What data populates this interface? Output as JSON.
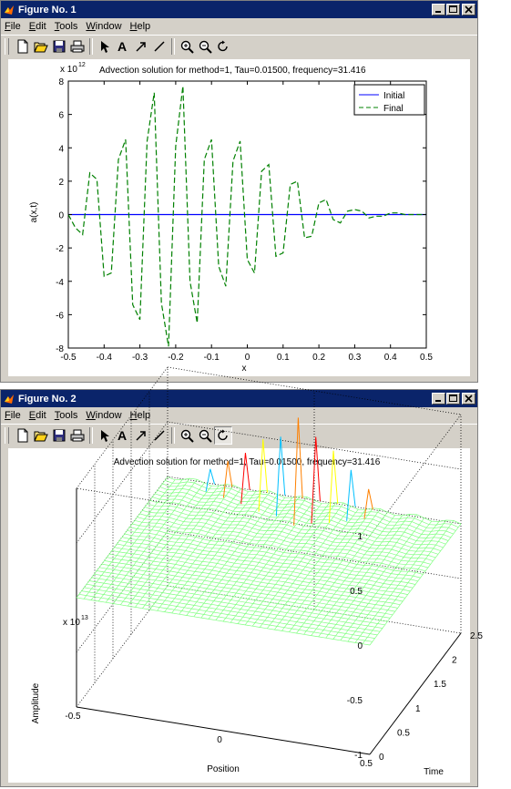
{
  "fig1": {
    "title": "Figure No. 1",
    "menu": [
      "File",
      "Edit",
      "Tools",
      "Window",
      "Help"
    ],
    "exponent_base": "x 10",
    "exponent_power": "12",
    "plot_title": "Advection solution for method=1, Tau=0.01500, frequency=31.416",
    "xlabel": "x",
    "ylabel": "a(x,t)",
    "legend": [
      {
        "label": "Initial",
        "color": "#0000ff",
        "dash": "solid"
      },
      {
        "label": "Final",
        "color": "#008000",
        "dash": "dashed"
      }
    ]
  },
  "fig2": {
    "title": "Figure No. 2",
    "menu": [
      "File",
      "Edit",
      "Tools",
      "Window",
      "Help"
    ],
    "plot_title": "Advection solution for method=1, Tau=0.01500, frequency=31.416",
    "exponent_base": "x 10",
    "exponent_power": "13",
    "zlabel": "Amplitude",
    "xlabel": "Position",
    "ylabel": "Time",
    "z_ticks": [
      "1",
      "0.5",
      "0",
      "-0.5",
      "-1"
    ],
    "position_ticks": [
      "0.5",
      "0",
      "-0.5"
    ],
    "time_ticks": [
      "0",
      "0.5",
      "1",
      "1.5",
      "2",
      "2.5"
    ]
  },
  "chart_data": [
    {
      "type": "line",
      "title": "Advection solution for method=1, Tau=0.01500, frequency=31.416",
      "xlabel": "x",
      "ylabel": "a(x,t)",
      "xlim": [
        -0.5,
        0.5
      ],
      "ylim": [
        -8,
        8
      ],
      "y_scale_label": "x 10^12",
      "x_ticks": [
        "-0.5",
        "-0.4",
        "-0.3",
        "-0.2",
        "-0.1",
        "0",
        "0.1",
        "0.2",
        "0.3",
        "0.4",
        "0.5"
      ],
      "y_ticks": [
        "8",
        "6",
        "4",
        "2",
        "0",
        "-2",
        "-4",
        "-6",
        "-8"
      ],
      "legend_position": "top-right",
      "series": [
        {
          "name": "Initial",
          "color": "#0000ff",
          "x": [
            -0.5,
            0.5
          ],
          "y": [
            0,
            0
          ]
        },
        {
          "name": "Final",
          "color": "#008000",
          "x": [
            -0.5,
            -0.48,
            -0.46,
            -0.44,
            -0.42,
            -0.4,
            -0.38,
            -0.36,
            -0.34,
            -0.32,
            -0.3,
            -0.28,
            -0.26,
            -0.24,
            -0.22,
            -0.2,
            -0.18,
            -0.16,
            -0.14,
            -0.12,
            -0.1,
            -0.08,
            -0.06,
            -0.04,
            -0.02,
            0.0,
            0.02,
            0.04,
            0.06,
            0.08,
            0.1,
            0.12,
            0.14,
            0.16,
            0.18,
            0.2,
            0.22,
            0.24,
            0.26,
            0.28,
            0.3,
            0.32,
            0.34,
            0.36,
            0.38,
            0.4,
            0.42,
            0.44,
            0.46,
            0.48,
            0.5
          ],
          "y": [
            0,
            -0.8,
            -1.2,
            2.5,
            2.1,
            -3.7,
            -3.5,
            3.3,
            4.5,
            -5.4,
            -6.3,
            4.4,
            7.3,
            -5.3,
            -7.9,
            4.1,
            7.7,
            -4.0,
            -6.5,
            3.3,
            4.5,
            -3.1,
            -4.3,
            3.2,
            4.4,
            -2.7,
            -3.5,
            2.6,
            3.0,
            -2.5,
            -2.3,
            1.8,
            2.0,
            -1.4,
            -1.3,
            0.7,
            0.9,
            -0.3,
            -0.5,
            0.2,
            0.3,
            0.2,
            -0.2,
            -0.1,
            -0.1,
            0.1,
            0.1,
            0.0,
            0.0,
            0.0,
            0.0
          ]
        }
      ]
    },
    {
      "type": "surface",
      "title": "Advection solution for method=1, Tau=0.01500, frequency=31.416",
      "xlabel": "Position",
      "ylabel": "Time",
      "zlabel": "Amplitude",
      "position_range": [
        -0.5,
        0.5
      ],
      "time_range": [
        0,
        2.5
      ],
      "zlim": [
        -1,
        1
      ],
      "z_scale_label": "x 10^13",
      "z_ticks": [
        "1",
        "0.5",
        "0",
        "-0.5",
        "-1"
      ],
      "position_ticks": [
        "0.5",
        "0",
        "-0.5"
      ],
      "time_ticks": [
        "0",
        "0.5",
        "1",
        "1.5",
        "2",
        "2.5"
      ],
      "mesh_color": "#80ff80"
    }
  ],
  "colors": {
    "titlebar": "#0a246a",
    "window": "#d4d0c8",
    "initial_line": "#0000ff",
    "final_line": "#008000",
    "mesh": "#80ff80"
  },
  "toolbar_icons": [
    "new-file-icon",
    "open-folder-icon",
    "save-icon",
    "print-icon",
    "select-arrow-icon",
    "insert-text-icon",
    "insert-arrow-icon",
    "insert-line-icon",
    "zoom-in-icon",
    "zoom-out-icon",
    "rotate-3d-icon"
  ]
}
